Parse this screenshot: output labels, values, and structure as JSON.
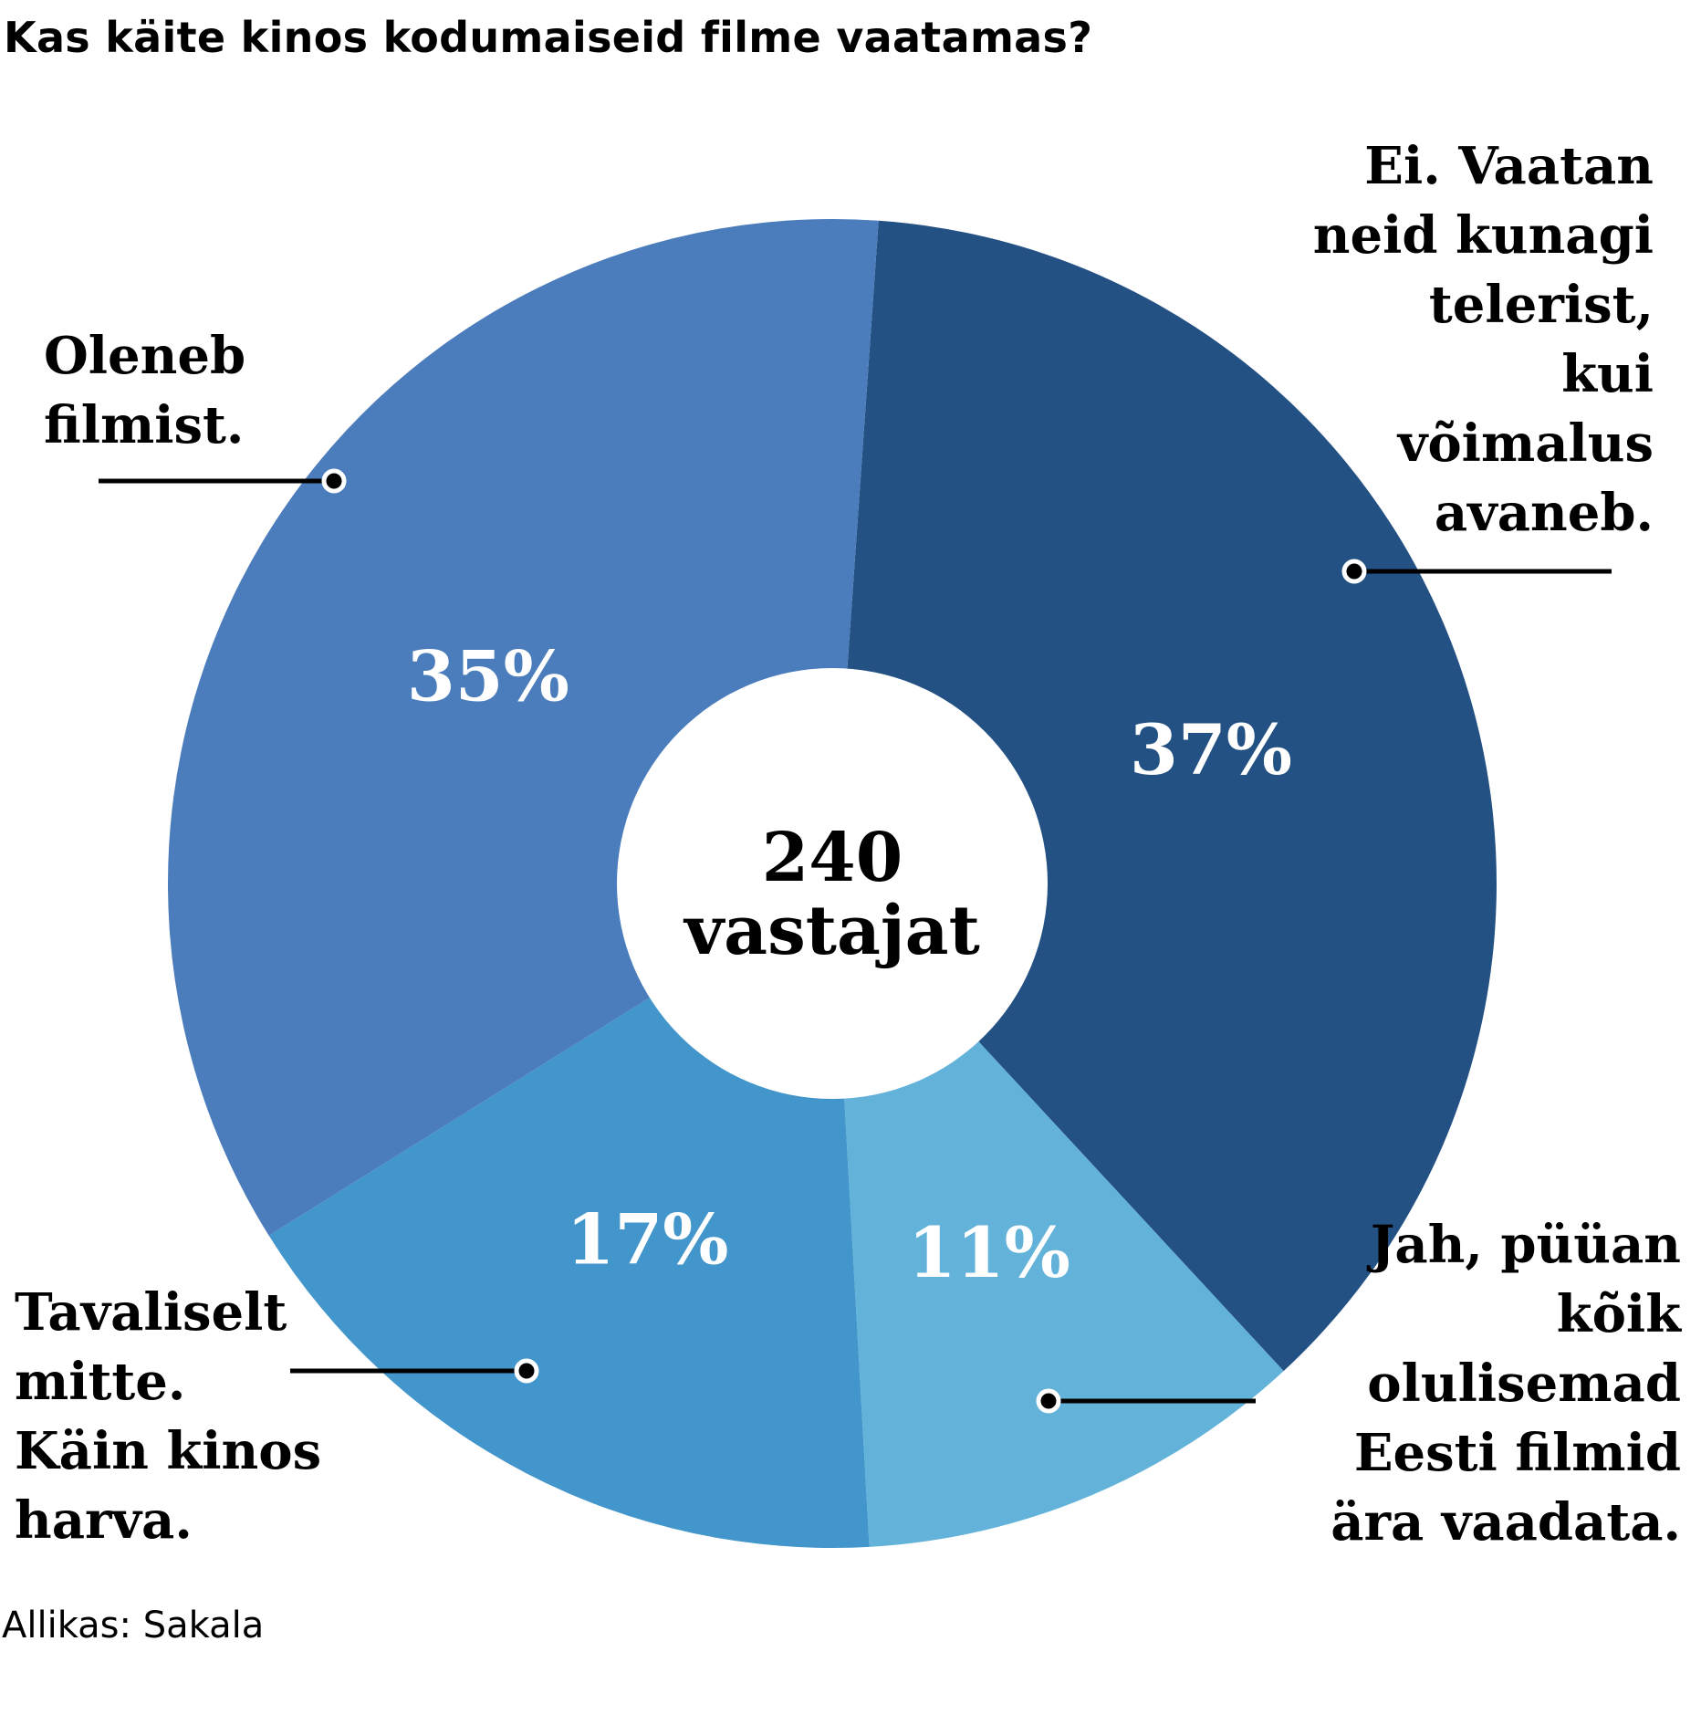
{
  "title": "Kas käite kinos kodumaiseid filme vaatamas?",
  "source": "Allikas: Sakala",
  "center": {
    "number": "240",
    "word": "vastajat"
  },
  "colors": {
    "segment_0": "#235183",
    "segment_1": "#63b2d9",
    "segment_2": "#4396cb",
    "segment_3": "#4b7cbb",
    "center_fill": "#ffffff",
    "value_text": "#ffffff",
    "leader": "#000000"
  },
  "chart_data": {
    "type": "pie",
    "donut": true,
    "total_respondents": 240,
    "start": "top, clockwise",
    "slices": [
      {
        "value_label": "37%",
        "value": 37,
        "label_lines": [
          "Ei. Vaatan",
          "neid kunagi",
          "telerist,",
          "kui",
          "võimalus",
          "avaneb."
        ]
      },
      {
        "value_label": "11%",
        "value": 11,
        "label_lines": [
          "Jah, püüan",
          "kõik",
          "olulisemad",
          "Eesti filmid",
          "ära vaadata."
        ]
      },
      {
        "value_label": "17%",
        "value": 17,
        "label_lines": [
          "Tavaliselt",
          "mitte.",
          "Käin kinos",
          "harva."
        ]
      },
      {
        "value_label": "35%",
        "value": 35,
        "label_lines": [
          "Oleneb",
          "filmist."
        ]
      }
    ]
  }
}
